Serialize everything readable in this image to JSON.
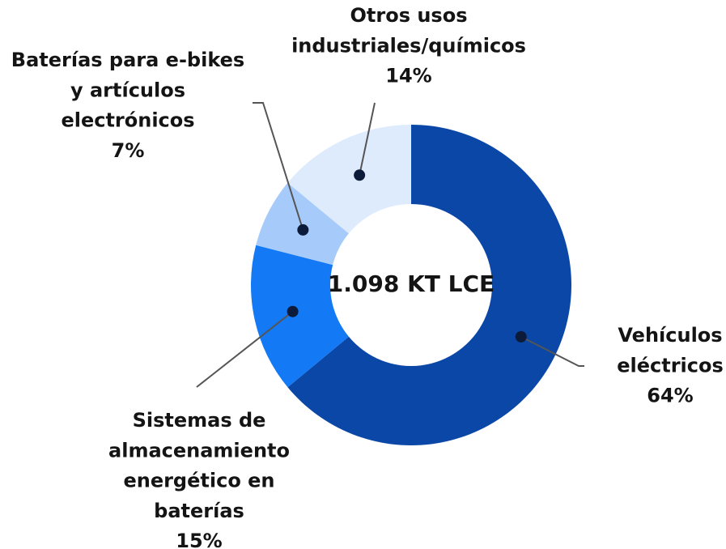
{
  "chart_data": {
    "type": "donut",
    "center_label": "1.098 KT LCE",
    "categories": [
      [
        "Vehículos",
        "eléctricos"
      ],
      [
        "Sistemas de",
        "almacenamiento",
        "energético en",
        "baterías"
      ],
      [
        "Baterías para e-bikes",
        "y artículos",
        "electrónicos"
      ],
      [
        "Otros usos",
        "industriales/químicos"
      ]
    ],
    "values": [
      64,
      15,
      7,
      14
    ],
    "value_labels": [
      "64%",
      "15%",
      "7%",
      "14%"
    ],
    "colors": [
      "#0a47a6",
      "#1479f5",
      "#a6cbfb",
      "#deebfd"
    ]
  }
}
